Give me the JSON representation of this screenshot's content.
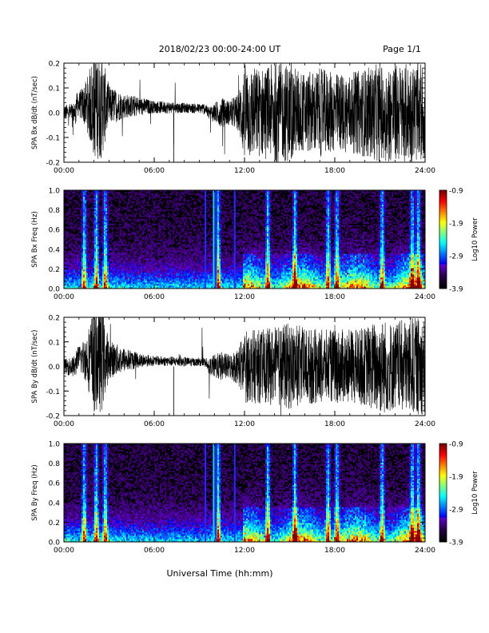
{
  "header": {
    "title": "2018/02/23  00:00-24:00 UT",
    "page": "Page 1/1"
  },
  "footer": {
    "xlabel": "Universal Time (hh:mm)"
  },
  "chart_data": [
    {
      "type": "line",
      "ylabel": "SPA Bx dB/dt (nT/sec)",
      "ylim": [
        -0.2,
        0.2
      ],
      "yticks": [
        "-0.2",
        "-0.1",
        "0.0",
        "0.1",
        "0.2"
      ],
      "xlim": [
        0,
        24
      ],
      "xticks": [
        "00:00",
        "06:00",
        "12:00",
        "18:00",
        "24:00"
      ],
      "envelope": [
        [
          0,
          0.03
        ],
        [
          1,
          0.05
        ],
        [
          1.5,
          0.1
        ],
        [
          2,
          0.22
        ],
        [
          2.5,
          0.22
        ],
        [
          3,
          0.08
        ],
        [
          4,
          0.05
        ],
        [
          5,
          0.04
        ],
        [
          6,
          0.025
        ],
        [
          7,
          0.025
        ],
        [
          8,
          0.02
        ],
        [
          9,
          0.02
        ],
        [
          9.5,
          0.025
        ],
        [
          10,
          0.04
        ],
        [
          10.5,
          0.06
        ],
        [
          11,
          0.05
        ],
        [
          11.6,
          0.08
        ],
        [
          12,
          0.2
        ],
        [
          13,
          0.18
        ],
        [
          14,
          0.2
        ],
        [
          15,
          0.2
        ],
        [
          16,
          0.16
        ],
        [
          17,
          0.18
        ],
        [
          18,
          0.16
        ],
        [
          19,
          0.16
        ],
        [
          20,
          0.18
        ],
        [
          21,
          0.2
        ],
        [
          22,
          0.2
        ],
        [
          23,
          0.2
        ],
        [
          24,
          0.2
        ]
      ]
    },
    {
      "type": "heatmap",
      "ylabel": "SPA Bx Freq (Hz)",
      "ylim": [
        0,
        1.0
      ],
      "yticks": [
        "0.0",
        "0.2",
        "0.4",
        "0.6",
        "0.8",
        "1.0"
      ],
      "xlim": [
        0,
        24
      ],
      "xticks": [
        "00:00",
        "06:00",
        "12:00",
        "18:00",
        "24:00"
      ],
      "colorbar": {
        "label": "Log10 Power",
        "min": -3.9,
        "max": -0.9,
        "ticks": [
          "-0.9",
          "-1.9",
          "-2.9",
          "-3.9"
        ]
      }
    },
    {
      "type": "line",
      "ylabel": "SPA By dB/dt (nT/sec)",
      "ylim": [
        -0.2,
        0.2
      ],
      "yticks": [
        "-0.2",
        "-0.1",
        "0.0",
        "0.1",
        "0.2"
      ],
      "xlim": [
        0,
        24
      ],
      "xticks": [
        "00:00",
        "06:00",
        "12:00",
        "18:00",
        "24:00"
      ],
      "envelope": [
        [
          0,
          0.03
        ],
        [
          1,
          0.05
        ],
        [
          1.5,
          0.1
        ],
        [
          2,
          0.22
        ],
        [
          2.5,
          0.22
        ],
        [
          3,
          0.08
        ],
        [
          4,
          0.05
        ],
        [
          5,
          0.03
        ],
        [
          6,
          0.02
        ],
        [
          7,
          0.02
        ],
        [
          8,
          0.02
        ],
        [
          9,
          0.015
        ],
        [
          9.5,
          0.02
        ],
        [
          10,
          0.05
        ],
        [
          10.5,
          0.06
        ],
        [
          11,
          0.05
        ],
        [
          11.6,
          0.08
        ],
        [
          12,
          0.15
        ],
        [
          13,
          0.15
        ],
        [
          14,
          0.16
        ],
        [
          15,
          0.18
        ],
        [
          16,
          0.16
        ],
        [
          17,
          0.15
        ],
        [
          18,
          0.15
        ],
        [
          19,
          0.15
        ],
        [
          20,
          0.16
        ],
        [
          21,
          0.2
        ],
        [
          22,
          0.18
        ],
        [
          23,
          0.2
        ],
        [
          24,
          0.2
        ]
      ]
    },
    {
      "type": "heatmap",
      "ylabel": "SPA By Freq (Hz)",
      "ylim": [
        0,
        1.0
      ],
      "yticks": [
        "0.0",
        "0.2",
        "0.4",
        "0.6",
        "0.8",
        "1.0"
      ],
      "xlim": [
        0,
        24
      ],
      "xticks": [
        "00:00",
        "06:00",
        "12:00",
        "18:00",
        "24:00"
      ],
      "colorbar": {
        "label": "Log10 Power",
        "min": -3.9,
        "max": -0.9,
        "ticks": [
          "-0.9",
          "-1.9",
          "-2.9",
          "-3.9"
        ]
      }
    }
  ]
}
